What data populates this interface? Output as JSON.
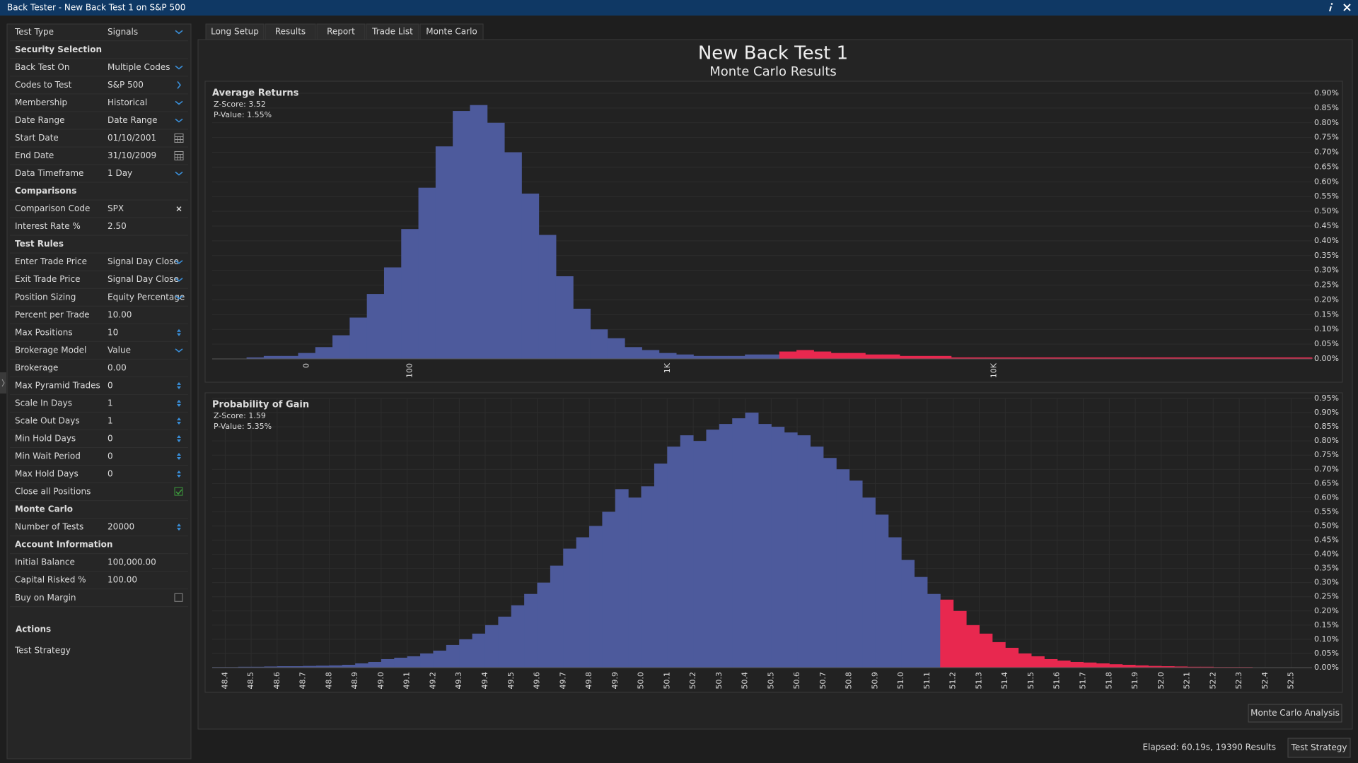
{
  "window": {
    "title": "Back Tester - New Back Test 1 on S&P 500"
  },
  "settings": {
    "rows": [
      {
        "label": "Test Type",
        "value": "Signals",
        "control": "dropdown"
      },
      {
        "section": "Security Selection"
      },
      {
        "label": "Back Test On",
        "value": "Multiple Codes",
        "control": "dropdown"
      },
      {
        "label": "Codes to Test",
        "value": "S&P 500",
        "control": "arrow"
      },
      {
        "label": "Membership",
        "value": "Historical",
        "control": "dropdown"
      },
      {
        "label": "Date Range",
        "value": "Date Range",
        "control": "dropdown"
      },
      {
        "label": "Start Date",
        "value": "01/10/2001",
        "control": "calendar"
      },
      {
        "label": "End Date",
        "value": "31/10/2009",
        "control": "calendar"
      },
      {
        "label": "Data Timeframe",
        "value": "1 Day",
        "control": "dropdown"
      },
      {
        "section": "Comparisons"
      },
      {
        "label": "Comparison Code",
        "value": "SPX",
        "control": "clear"
      },
      {
        "label": "Interest Rate %",
        "value": "2.50"
      },
      {
        "section": "Test Rules"
      },
      {
        "label": "Enter Trade Price",
        "value": "Signal Day Close",
        "control": "dropdown"
      },
      {
        "label": "Exit Trade Price",
        "value": "Signal Day Close",
        "control": "dropdown"
      },
      {
        "label": "Position Sizing",
        "value": "Equity Percentage",
        "control": "dropdown"
      },
      {
        "label": "Percent per Trade",
        "value": "10.00"
      },
      {
        "label": "Max Positions",
        "value": "10",
        "control": "spinner"
      },
      {
        "label": "Brokerage Model",
        "value": "Value",
        "control": "dropdown"
      },
      {
        "label": "Brokerage",
        "value": "0.00"
      },
      {
        "label": "Max Pyramid Trades",
        "value": "0",
        "control": "spinner"
      },
      {
        "label": "Scale In Days",
        "value": "1",
        "control": "spinner"
      },
      {
        "label": "Scale Out Days",
        "value": "1",
        "control": "spinner"
      },
      {
        "label": "Min Hold Days",
        "value": "0",
        "control": "spinner"
      },
      {
        "label": "Min Wait Period",
        "value": "0",
        "control": "spinner"
      },
      {
        "label": "Max Hold Days",
        "value": "0",
        "control": "spinner"
      },
      {
        "label": "Close all Positions",
        "control": "checkbox",
        "checked": true
      },
      {
        "section": "Monte Carlo"
      },
      {
        "label": "Number of Tests",
        "value": "20000",
        "control": "spinner"
      },
      {
        "section": "Account Information"
      },
      {
        "label": "Initial Balance",
        "value": "100,000.00"
      },
      {
        "label": "Capital Risked %",
        "value": "100.00"
      },
      {
        "label": "Buy on Margin",
        "control": "checkbox",
        "checked": false
      }
    ]
  },
  "actions": {
    "title": "Actions",
    "items": [
      "Test Strategy"
    ]
  },
  "tabs": [
    "Long Setup",
    "Results",
    "Report",
    "Trade List",
    "Monte Carlo"
  ],
  "active_tab": 4,
  "header": {
    "title": "New Back Test 1",
    "subtitle": "Monte Carlo Results"
  },
  "chart_data": [
    {
      "type": "bar",
      "title": "Average Returns",
      "annotations": [
        "Z-Score: 3.52",
        "P-Value: 1.55%"
      ],
      "categories": [
        null,
        null,
        null,
        null,
        null,
        "0",
        null,
        null,
        null,
        null,
        null,
        "100",
        null,
        null,
        null,
        null,
        null,
        null,
        null,
        null,
        null,
        null,
        null,
        null,
        null,
        null,
        "1K",
        null,
        null,
        null,
        null,
        null,
        null,
        null,
        null,
        null,
        null,
        null,
        null,
        null,
        null,
        null,
        null,
        null,
        null,
        "10K",
        null,
        null,
        null,
        null,
        null,
        null,
        null,
        null,
        null,
        null,
        null,
        null,
        null,
        null,
        null,
        null,
        null,
        null
      ],
      "values": [
        0,
        0,
        0.005,
        0.01,
        0.01,
        0.02,
        0.04,
        0.08,
        0.14,
        0.22,
        0.31,
        0.44,
        0.58,
        0.72,
        0.84,
        0.86,
        0.8,
        0.7,
        0.56,
        0.42,
        0.28,
        0.17,
        0.1,
        0.07,
        0.04,
        0.03,
        0.02,
        0.015,
        0.01,
        0.01,
        0.01,
        0.015,
        0.015,
        0.025,
        0.03,
        0.025,
        0.02,
        0.02,
        0.015,
        0.015,
        0.01,
        0.01,
        0.01,
        0.005,
        0.005,
        0.005,
        0.005,
        0.005,
        0.005,
        0.005,
        0.005,
        0.005,
        0.005,
        0.005,
        0.005,
        0.005,
        0.005,
        0.005,
        0.005,
        0.005,
        0.005,
        0.005,
        0.005,
        0.005
      ],
      "colors": [
        "#4d5a9c",
        "#4d5a9c",
        "#4d5a9c",
        "#4d5a9c",
        "#4d5a9c",
        "#4d5a9c",
        "#4d5a9c",
        "#4d5a9c",
        "#4d5a9c",
        "#4d5a9c",
        "#4d5a9c",
        "#4d5a9c",
        "#4d5a9c",
        "#4d5a9c",
        "#4d5a9c",
        "#4d5a9c",
        "#4d5a9c",
        "#4d5a9c",
        "#4d5a9c",
        "#4d5a9c",
        "#4d5a9c",
        "#4d5a9c",
        "#4d5a9c",
        "#4d5a9c",
        "#4d5a9c",
        "#4d5a9c",
        "#4d5a9c",
        "#4d5a9c",
        "#4d5a9c",
        "#4d5a9c",
        "#4d5a9c",
        "#4d5a9c",
        "#4d5a9c",
        "#e8284f",
        "#e8284f",
        "#e8284f",
        "#e8284f",
        "#e8284f",
        "#e8284f",
        "#e8284f",
        "#e8284f",
        "#e8284f",
        "#e8284f",
        "#e8284f",
        "#e8284f",
        "#e8284f",
        "#e8284f",
        "#e8284f",
        "#e8284f",
        "#e8284f",
        "#e8284f",
        "#e8284f",
        "#e8284f",
        "#e8284f",
        "#e8284f",
        "#e8284f",
        "#e8284f",
        "#e8284f",
        "#e8284f",
        "#e8284f",
        "#e8284f",
        "#e8284f",
        "#e8284f",
        "#e8284f"
      ],
      "ylim": [
        0,
        0.9
      ],
      "yticks": [
        {
          "value": 0,
          "label": "0.00%"
        },
        {
          "value": 0.05,
          "label": "0.05%"
        },
        {
          "value": 0.1,
          "label": "0.10%"
        },
        {
          "value": 0.15,
          "label": "0.15%"
        },
        {
          "value": 0.2,
          "label": "0.20%"
        },
        {
          "value": 0.25,
          "label": "0.25%"
        },
        {
          "value": 0.3,
          "label": "0.30%"
        },
        {
          "value": 0.35,
          "label": "0.35%"
        },
        {
          "value": 0.4,
          "label": "0.40%"
        },
        {
          "value": 0.45,
          "label": "0.45%"
        },
        {
          "value": 0.5,
          "label": "0.50%"
        },
        {
          "value": 0.55,
          "label": "0.55%"
        },
        {
          "value": 0.6,
          "label": "0.60%"
        },
        {
          "value": 0.65,
          "label": "0.65%"
        },
        {
          "value": 0.7,
          "label": "0.70%"
        },
        {
          "value": 0.75,
          "label": "0.75%"
        },
        {
          "value": 0.8,
          "label": "0.80%"
        },
        {
          "value": 0.85,
          "label": "0.85%"
        },
        {
          "value": 0.9,
          "label": "0.90%"
        }
      ],
      "grid": true
    },
    {
      "type": "histogram",
      "title": "Probability of Gain",
      "annotations": [
        "Z-Score: 1.59",
        "P-Value: 5.35%"
      ],
      "bins": [
        48.35,
        48.4,
        48.45,
        48.5,
        48.55,
        48.6,
        48.65,
        48.7,
        48.75,
        48.8,
        48.85,
        48.9,
        48.95,
        49,
        49.05,
        49.1,
        49.15,
        49.2,
        49.25,
        49.3,
        49.35,
        49.4,
        49.45,
        49.5,
        49.55,
        49.6,
        49.65,
        49.7,
        49.75,
        49.8,
        49.85,
        49.9,
        49.95,
        50,
        50.05,
        50.1,
        50.15,
        50.2,
        50.25,
        50.3,
        50.35,
        50.4,
        50.45,
        50.5,
        50.55,
        50.6,
        50.65,
        50.7,
        50.75,
        50.8,
        50.85,
        50.9,
        50.95,
        51,
        51.05,
        51.1,
        51.15,
        51.2,
        51.25,
        51.3,
        51.35,
        51.4,
        51.45,
        51.5,
        51.55,
        51.6,
        51.65,
        51.7,
        51.75,
        51.8,
        51.85,
        51.9,
        51.95,
        52,
        52.05,
        52.1,
        52.15,
        52.2,
        52.25,
        52.3,
        52.35,
        52.4,
        52.45,
        52.5,
        52.55
      ],
      "values": [
        0.002,
        0.002,
        0.003,
        0.003,
        0.004,
        0.005,
        0.005,
        0.006,
        0.007,
        0.008,
        0.01,
        0.015,
        0.02,
        0.03,
        0.035,
        0.04,
        0.05,
        0.06,
        0.08,
        0.1,
        0.12,
        0.15,
        0.18,
        0.22,
        0.26,
        0.3,
        0.36,
        0.42,
        0.46,
        0.5,
        0.55,
        0.63,
        0.6,
        0.64,
        0.72,
        0.78,
        0.82,
        0.8,
        0.84,
        0.86,
        0.88,
        0.9,
        0.86,
        0.85,
        0.83,
        0.82,
        0.78,
        0.74,
        0.7,
        0.66,
        0.6,
        0.54,
        0.46,
        0.38,
        0.32,
        0.26,
        0.24,
        0.2,
        0.15,
        0.12,
        0.09,
        0.07,
        0.05,
        0.04,
        0.03,
        0.025,
        0.02,
        0.018,
        0.015,
        0.012,
        0.01,
        0.008,
        0.006,
        0.005,
        0.004,
        0.003,
        0.003,
        0.002,
        0.002,
        0.002,
        0.001,
        0.001,
        0.001,
        0.001
      ],
      "colors": [
        "#4d5a9c",
        "#4d5a9c",
        "#4d5a9c",
        "#4d5a9c",
        "#4d5a9c",
        "#4d5a9c",
        "#4d5a9c",
        "#4d5a9c",
        "#4d5a9c",
        "#4d5a9c",
        "#4d5a9c",
        "#4d5a9c",
        "#4d5a9c",
        "#4d5a9c",
        "#4d5a9c",
        "#4d5a9c",
        "#4d5a9c",
        "#4d5a9c",
        "#4d5a9c",
        "#4d5a9c",
        "#4d5a9c",
        "#4d5a9c",
        "#4d5a9c",
        "#4d5a9c",
        "#4d5a9c",
        "#4d5a9c",
        "#4d5a9c",
        "#4d5a9c",
        "#4d5a9c",
        "#4d5a9c",
        "#4d5a9c",
        "#4d5a9c",
        "#4d5a9c",
        "#4d5a9c",
        "#4d5a9c",
        "#4d5a9c",
        "#4d5a9c",
        "#4d5a9c",
        "#4d5a9c",
        "#4d5a9c",
        "#4d5a9c",
        "#4d5a9c",
        "#4d5a9c",
        "#4d5a9c",
        "#4d5a9c",
        "#4d5a9c",
        "#4d5a9c",
        "#4d5a9c",
        "#4d5a9c",
        "#4d5a9c",
        "#4d5a9c",
        "#4d5a9c",
        "#4d5a9c",
        "#4d5a9c",
        "#4d5a9c",
        "#4d5a9c",
        "#e8284f",
        "#e8284f",
        "#e8284f",
        "#e8284f",
        "#e8284f",
        "#e8284f",
        "#e8284f",
        "#e8284f",
        "#e8284f",
        "#e8284f",
        "#e8284f",
        "#e8284f",
        "#e8284f",
        "#e8284f",
        "#e8284f",
        "#e8284f",
        "#e8284f",
        "#e8284f",
        "#e8284f",
        "#e8284f",
        "#e8284f",
        "#e8284f",
        "#e8284f",
        "#e8284f",
        "#e8284f",
        "#e8284f",
        "#e8284f",
        "#e8284f"
      ],
      "xlim": [
        48.35,
        52.58
      ],
      "xticks": [
        48.4,
        48.5,
        48.6,
        48.7,
        48.8,
        48.9,
        {
          "value": 49,
          "label": "49.0"
        },
        49.1,
        49.2,
        49.3,
        49.4,
        49.5,
        49.6,
        49.7,
        49.8,
        49.9,
        {
          "value": 50,
          "label": "50.0"
        },
        50.1,
        50.2,
        50.3,
        50.4,
        50.5,
        50.6,
        50.7,
        50.8,
        50.9,
        {
          "value": 51,
          "label": "51.0"
        },
        51.1,
        51.2,
        51.3,
        51.4,
        51.5,
        51.6,
        51.7,
        51.8,
        51.9,
        {
          "value": 52,
          "label": "52.0"
        },
        52.1,
        52.2,
        52.3,
        52.4,
        52.5
      ],
      "ylim": [
        0,
        0.95
      ],
      "yticks": [
        {
          "value": 0,
          "label": "0.00%"
        },
        {
          "value": 0.05,
          "label": "0.05%"
        },
        {
          "value": 0.1,
          "label": "0.10%"
        },
        {
          "value": 0.15,
          "label": "0.15%"
        },
        {
          "value": 0.2,
          "label": "0.20%"
        },
        {
          "value": 0.25,
          "label": "0.25%"
        },
        {
          "value": 0.3,
          "label": "0.30%"
        },
        {
          "value": 0.35,
          "label": "0.35%"
        },
        {
          "value": 0.4,
          "label": "0.40%"
        },
        {
          "value": 0.45,
          "label": "0.45%"
        },
        {
          "value": 0.5,
          "label": "0.50%"
        },
        {
          "value": 0.55,
          "label": "0.55%"
        },
        {
          "value": 0.6,
          "label": "0.60%"
        },
        {
          "value": 0.65,
          "label": "0.65%"
        },
        {
          "value": 0.7,
          "label": "0.70%"
        },
        {
          "value": 0.75,
          "label": "0.75%"
        },
        {
          "value": 0.8,
          "label": "0.80%"
        },
        {
          "value": 0.85,
          "label": "0.85%"
        },
        {
          "value": 0.9,
          "label": "0.90%"
        },
        {
          "value": 0.95,
          "label": "0.95%"
        }
      ],
      "grid": true
    }
  ],
  "buttons": {
    "analysis": "Monte Carlo Analysis",
    "run": "Test Strategy"
  },
  "status": "Elapsed: 60.19s, 19390 Results"
}
